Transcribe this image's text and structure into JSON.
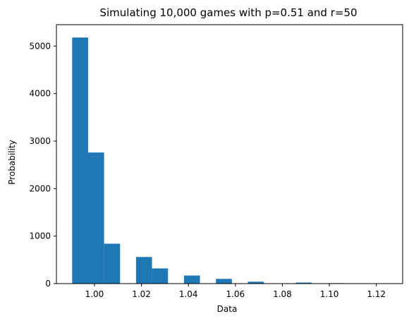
{
  "chart_data": {
    "type": "bar",
    "title": "Simulating 10,000 games with p=0.51 and r=50",
    "xlabel": "Data",
    "ylabel": "Probability",
    "xlim": [
      0.9838,
      1.1312
    ],
    "ylim": [
      0,
      5450
    ],
    "x_ticks": [
      {
        "value": 1.0,
        "label": "1.00"
      },
      {
        "value": 1.02,
        "label": "1.02"
      },
      {
        "value": 1.04,
        "label": "1.04"
      },
      {
        "value": 1.06,
        "label": "1.06"
      },
      {
        "value": 1.08,
        "label": "1.08"
      },
      {
        "value": 1.1,
        "label": "1.10"
      },
      {
        "value": 1.12,
        "label": "1.12"
      }
    ],
    "y_ticks": [
      {
        "value": 0,
        "label": "0"
      },
      {
        "value": 1000,
        "label": "1000"
      },
      {
        "value": 2000,
        "label": "2000"
      },
      {
        "value": 3000,
        "label": "3000"
      },
      {
        "value": 4000,
        "label": "4000"
      },
      {
        "value": 5000,
        "label": "5000"
      }
    ],
    "grid": false,
    "bar_color": "#1f77b4",
    "bins": [
      {
        "start": 0.9905,
        "end": 0.9973,
        "value": 5180
      },
      {
        "start": 0.9973,
        "end": 1.0041,
        "value": 2760
      },
      {
        "start": 1.0041,
        "end": 1.0109,
        "value": 840
      },
      {
        "start": 1.0109,
        "end": 1.0177,
        "value": 0
      },
      {
        "start": 1.0177,
        "end": 1.0245,
        "value": 560
      },
      {
        "start": 1.0245,
        "end": 1.0313,
        "value": 320
      },
      {
        "start": 1.0313,
        "end": 1.0381,
        "value": 0
      },
      {
        "start": 1.0381,
        "end": 1.0449,
        "value": 170
      },
      {
        "start": 1.0449,
        "end": 1.0517,
        "value": 0
      },
      {
        "start": 1.0517,
        "end": 1.0585,
        "value": 100
      },
      {
        "start": 1.0585,
        "end": 1.0653,
        "value": 0
      },
      {
        "start": 1.0653,
        "end": 1.0721,
        "value": 40
      },
      {
        "start": 1.0721,
        "end": 1.0789,
        "value": 0
      },
      {
        "start": 1.0789,
        "end": 1.0857,
        "value": 8
      },
      {
        "start": 1.0857,
        "end": 1.0925,
        "value": 22
      },
      {
        "start": 1.0925,
        "end": 1.0993,
        "value": 0
      },
      {
        "start": 1.0993,
        "end": 1.1061,
        "value": 10
      },
      {
        "start": 1.1061,
        "end": 1.1129,
        "value": 0
      },
      {
        "start": 1.1129,
        "end": 1.1197,
        "value": 0
      },
      {
        "start": 1.1197,
        "end": 1.1265,
        "value": 3
      }
    ]
  }
}
